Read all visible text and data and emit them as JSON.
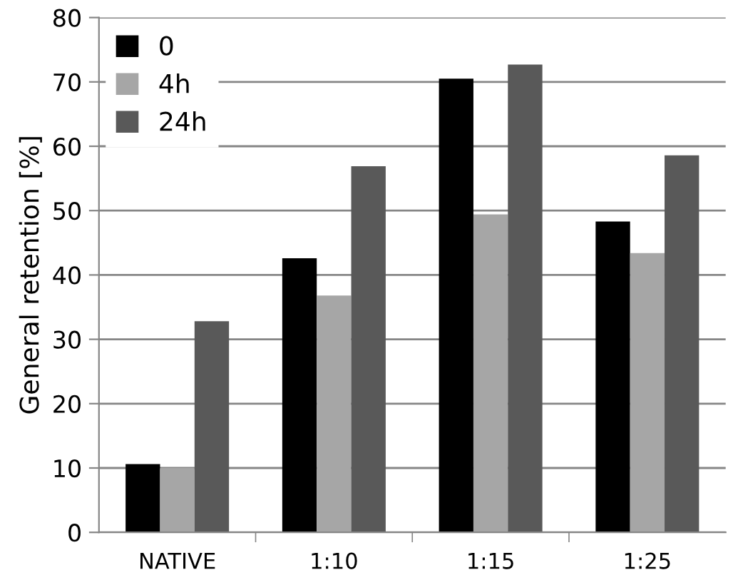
{
  "chart_data": {
    "type": "bar",
    "ylabel": "General retention [%]",
    "categories": [
      "NATIVE",
      "1:10",
      "1:15",
      "1:25"
    ],
    "series": [
      {
        "name": "0",
        "color": "#000000",
        "values": [
          10.6,
          42.6,
          70.5,
          48.3
        ]
      },
      {
        "name": "4h",
        "color": "#a6a6a6",
        "values": [
          10,
          36.8,
          49.4,
          43.4
        ]
      },
      {
        "name": "24h",
        "color": "#595959",
        "values": [
          32.8,
          56.9,
          72.7,
          58.6
        ]
      }
    ],
    "ylim": [
      0,
      80
    ],
    "yticks": [
      0,
      10,
      20,
      30,
      40,
      50,
      60,
      70,
      80
    ],
    "grid": "y",
    "legend": "top left"
  }
}
